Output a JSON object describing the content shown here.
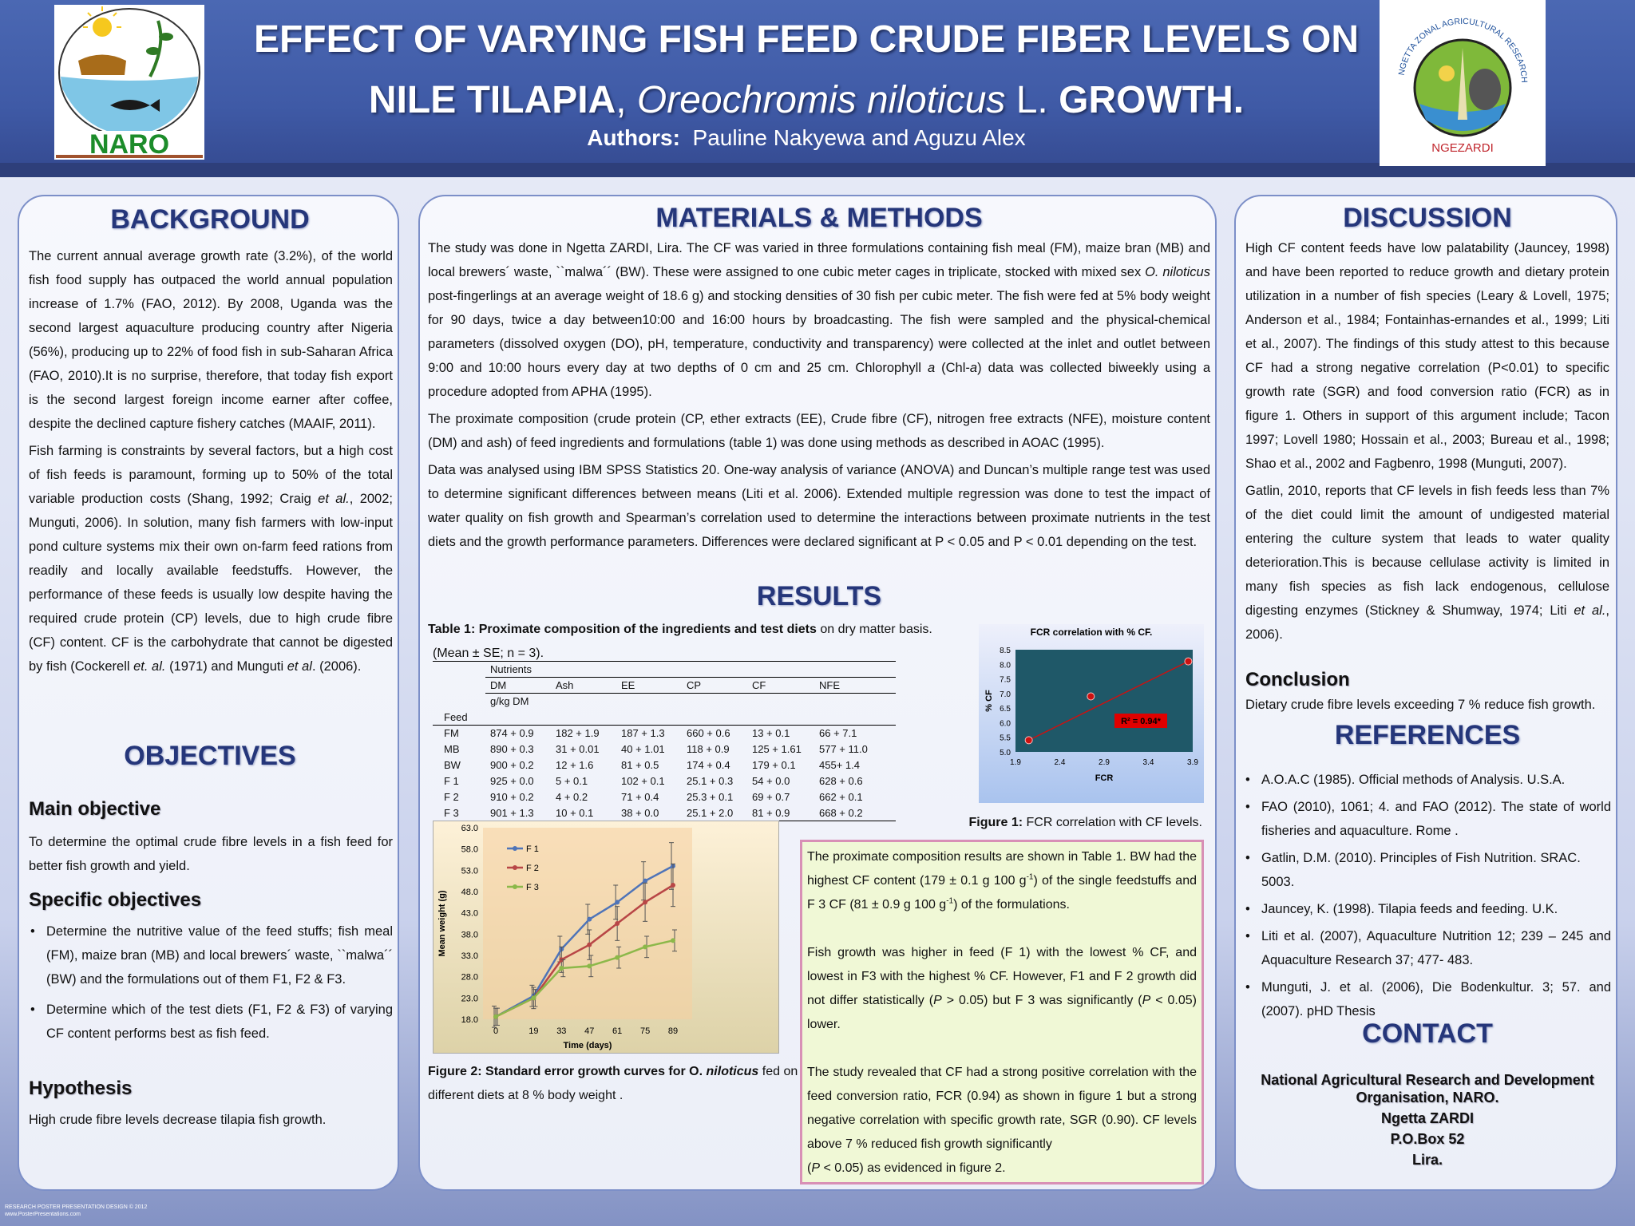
{
  "header": {
    "title_line1": "EFFECT OF VARYING FISH FEED CRUDE FIBER LEVELS ON",
    "title_line2_a": "NILE TILAPIA",
    "title_line2_b": "Oreochromis niloticus",
    "title_line2_c": "L.",
    "title_line2_d": "GROWTH.",
    "authors_label": "Authors:",
    "authors": "Pauline Nakyewa  and  Aguzu  Alex",
    "logo_left_text": "NARO",
    "logo_right_ring": "NGETTA ZONAL AGRICULTURAL RESEARCH AND DEVELOPMENT INSTITUTE",
    "logo_right_text": "NGEZARDI"
  },
  "background": {
    "heading": "BACKGROUND",
    "p1": "The current annual average growth rate (3.2%), of the world fish food supply has outpaced the world annual  population increase of 1.7% (FAO, 2012). By 2008, Uganda was the second largest aquaculture producing country after Nigeria (56%), producing up to 22% of food fish in sub-Saharan Africa (FAO, 2010).It is no surprise, therefore, that today fish export is the second largest foreign income earner after coffee, despite the declined capture fishery catches (MAAIF, 2011).",
    "p2_a": "Fish farming is constraints by several factors, but a high cost of fish feeds is paramount, forming up to 50% of the total variable production costs (Shang, 1992; Craig ",
    "p2_b": "et al.",
    "p2_c": ", 2002; Munguti, 2006). In solution, many fish farmers with low-input pond culture systems mix their own on-farm feed rations from readily and locally available feedstuffs. However, the performance of these feeds is usually low despite having the required crude protein (CP) levels, due to high crude fibre (CF) content.  CF is the carbohydrate that cannot be digested by fish (Cockerell ",
    "p2_d": "et. al.",
    "p2_e": " (1971) and Munguti ",
    "p2_f": "et al",
    "p2_g": ". (2006)."
  },
  "objectives": {
    "heading": "OBJECTIVES",
    "main_heading": "Main objective",
    "main_text": "To determine the optimal crude fibre levels in a fish feed for better fish growth and yield.",
    "specific_heading": "Specific objectives",
    "specific": [
      "Determine the nutritive value of the feed stuffs; fish meal (FM), maize bran (MB) and local brewers´ waste, ``malwa´´ (BW) and the formulations out of them F1, F2 & F3.",
      "Determine which of the test diets (F1, F2 & F3) of varying CF content performs best as fish feed."
    ],
    "hypothesis_heading": "Hypothesis",
    "hypothesis_text": "High crude fibre levels decrease tilapia fish growth."
  },
  "methods": {
    "heading": "MATERIALS & METHODS",
    "p1_a": "The study was done in Ngetta ZARDI, Lira. The CF was varied in three formulations containing  fish meal (FM), maize bran (MB) and local brewers´ waste, ``malwa´´ (BW).  These were assigned to one cubic meter cages in triplicate, stocked with mixed sex ",
    "p1_b": "O. niloticus",
    "p1_c": " post-fingerlings at an average weight of 18.6 g) and stocking densities of 30 fish per cubic meter. The fish were fed at 5% body weight for 90 days, twice a day between10:00 and 16:00 hours by broadcasting. The fish were sampled and the physical-chemical parameters (dissolved oxygen (DO), pH, temperature, conductivity and transparency) were collected at the inlet and outlet between 9:00 and 10:00 hours every day at two depths of 0 cm and 25 cm. Chlorophyll ",
    "p1_d": "a",
    "p1_e": " (Chl-",
    "p1_f": "a",
    "p1_g": ") data was collected biweekly using a procedure adopted from APHA (1995).",
    "p2": "The proximate composition  (crude protein (CP, ether extracts (EE), Crude fibre (CF), nitrogen free extracts (NFE), moisture content (DM) and ash) of feed ingredients and formulations (table 1) was done using methods as described in AOAC (1995).",
    "p3": "Data was analysed using IBM SPSS Statistics 20. One-way analysis of variance (ANOVA) and  Duncan’s multiple range test was used to determine significant differences between means (Liti et al. 2006).  Extended multiple regression was done to test the impact of water quality on fish growth and Spearman’s correlation used to determine the interactions between proximate nutrients in the test diets and the growth performance parameters.  Differences were declared significant at P < 0.05 and P < 0.01 depending on the test."
  },
  "results": {
    "heading": "RESULTS",
    "table_caption_a": "Table 1:",
    "table_caption_b": "Proximate composition of the ingredients and test diets",
    "table_caption_c": "on dry matter basis.",
    "table_caption_d": "(Mean ± SE; n = 3).",
    "table": {
      "group_label": "Nutrients",
      "unit_label": "g/kg DM",
      "row_header": "Feed",
      "columns": [
        "DM",
        "Ash",
        "EE",
        "CP",
        "CF",
        "NFE"
      ],
      "rows": [
        {
          "feed": "FM",
          "cells": [
            "874 + 0.9",
            "182 + 1.9",
            "187 + 1.3",
            "660 + 0.6",
            "13 + 0.1",
            "66 + 7.1"
          ]
        },
        {
          "feed": "MB",
          "cells": [
            "890 + 0.3",
            "31 + 0.01",
            "40 + 1.01",
            "118 + 0.9",
            "125 + 1.61",
            "577 + 11.0"
          ]
        },
        {
          "feed": "BW",
          "cells": [
            "900 + 0.2",
            "12 + 1.6",
            "81 + 0.5",
            "174 + 0.4",
            "179 + 0.1",
            "455+ 1.4"
          ]
        },
        {
          "feed": "F 1",
          "cells": [
            "925 + 0.0",
            "5 + 0.1",
            "102 + 0.1",
            "25.1 + 0.3",
            "54 + 0.0",
            "628 + 0.6"
          ]
        },
        {
          "feed": "F 2",
          "cells": [
            "910 + 0.2",
            "4 + 0.2",
            "71 + 0.4",
            "25.3 + 0.1",
            "69 + 0.7",
            "662 + 0.1"
          ]
        },
        {
          "feed": "F 3",
          "cells": [
            "901 + 1.3",
            "10 + 0.1",
            "38 + 0.0",
            "25.1 + 2.0",
            "81 + 0.9",
            "668 + 0.2"
          ]
        }
      ]
    },
    "fig1_caption_a": "Figure 1:",
    "fig1_caption_b": "FCR correlation with CF levels.",
    "fig2_caption_a": "Figure 2:",
    "fig2_caption_b": "Standard error growth curves for O.",
    "fig2_caption_c": "niloticus",
    "fig2_caption_d": "fed on different diets at 8 % body weight .",
    "box_p1_a": "The proximate composition results are shown in Table 1. BW had the highest CF content (179 ± 0.1 g 100 g",
    "box_p1_sup1": "-1",
    "box_p1_b": ") of the single feedstuffs  and  F 3 CF (81 ± 0.9 g 100 g",
    "box_p1_sup2": "-1",
    "box_p1_c": ") of the formulations.",
    "box_p2_a": "Fish growth was higher in feed (F 1) with the lowest % CF,  and lowest in F3 with the highest % CF. However, F1 and F 2 growth did not differ statistically (",
    "box_p2_b": "P",
    "box_p2_c": " > 0.05)  but  F 3 was significantly (",
    "box_p2_d": "P",
    "box_p2_e": " < 0.05) lower.",
    "box_p3_a": "The study revealed that CF had a strong positive correlation with the feed conversion ratio, FCR (0.94) as shown in figure 1 but a strong negative correlation with specific growth rate, SGR (0.90). CF levels above 7 % reduced fish growth significantly",
    "box_p3_b": "(",
    "box_p3_c": "P",
    "box_p3_d": " < 0.05) as evidenced in figure 2."
  },
  "discussion": {
    "heading": "DISCUSSION",
    "p1": "High CF content feeds have low palatability (Jauncey, 1998) and have been reported to reduce growth and dietary protein utilization in a number of fish species (Leary & Lovell, 1975; Anderson et al., 1984; Fontainhas-ernandes et al., 1999; Liti et al., 2007).  The findings of this study attest to this because CF had a strong negative correlation (P<0.01) to specific growth rate (SGR) and food conversion ratio (FCR) as in figure 1. Others in support of this argument include; Tacon 1997; Lovell 1980; Hossain et al., 2003; Bureau et al., 1998; Shao et al., 2002 and Fagbenro, 1998 (Munguti, 2007).",
    "p2_a": "Gatlin, 2010, reports that CF levels in fish feeds less than 7% of the diet could limit the amount of undigested material entering the culture system that leads to water quality deterioration.This is because cellulase activity is limited in many fish species as fish lack endogenous, cellulose digesting enzymes (Stickney & Shumway, 1974; Liti ",
    "p2_b": "et al.",
    "p2_c": ", 2006).",
    "conclusion_heading": "Conclusion",
    "conclusion_text": "Dietary crude fibre levels exceeding 7 % reduce fish growth."
  },
  "references": {
    "heading": "REFERENCES",
    "items": [
      "A.O.A.C (1985). Official methods of Analysis. U.S.A.",
      "FAO (2010), 1061; 4. and FAO (2012). The state of world fisheries and aquaculture. Rome .",
      "Gatlin, D.M. (2010). Principles of Fish Nutrition. SRAC. 5003.",
      "Jauncey, K. (1998). Tilapia feeds and feeding. U.K.",
      "Liti et al. (2007), Aquaculture Nutrition 12; 239 – 245 and Aquaculture Research 37; 477- 483.",
      "Munguti, J. et al. (2006), Die Bodenkultur. 3; 57. and (2007). pHD Thesis"
    ]
  },
  "contact": {
    "heading": "CONTACT",
    "line1": "National Agricultural Research and Development Organisation, NARO.",
    "line2": "Ngetta ZARDI",
    "line3": "P.O.Box 52",
    "line4": "Lira."
  },
  "footer": {
    "line1": "RESEARCH POSTER PRESENTATION DESIGN © 2012",
    "line2": "www.PosterPresentations.com"
  },
  "chart_data": [
    {
      "type": "scatter",
      "title": "FCR correlation with % CF.",
      "xlabel": "FCR",
      "ylabel": "% CF",
      "x_ticks": [
        "1.9",
        "2.4",
        "2.9",
        "3.4",
        "3.9"
      ],
      "y_ticks": [
        "5.0",
        "5.5",
        "6.0",
        "6.5",
        "7.0",
        "7.5",
        "8.0",
        "8.5"
      ],
      "xlim": [
        1.9,
        3.9
      ],
      "ylim": [
        5.0,
        8.5
      ],
      "points": [
        {
          "x": 2.05,
          "y": 5.4
        },
        {
          "x": 2.75,
          "y": 6.9
        },
        {
          "x": 3.85,
          "y": 8.1
        }
      ],
      "annotation": "R² = 0.94*",
      "colors": {
        "plot_bg": "#1f5868",
        "marker": "#cc1111",
        "annotation_bg": "#e00000"
      }
    },
    {
      "type": "line",
      "xlabel": "Time (days)",
      "ylabel": "Mean weight (g)",
      "x": [
        0,
        19,
        33,
        47,
        61,
        75,
        89
      ],
      "x_ticks": [
        "0",
        "19",
        "33",
        "47",
        "61",
        "75",
        "89"
      ],
      "y_ticks": [
        "18.0",
        "23.0",
        "28.0",
        "33.0",
        "38.0",
        "43.0",
        "48.0",
        "53.0",
        "58.0",
        "63.0"
      ],
      "ylim": [
        18,
        63
      ],
      "series": [
        {
          "name": "F 1",
          "color": "#4f74b8",
          "values": [
            18.6,
            23.5,
            34.5,
            41.5,
            45.5,
            50.5,
            54.0
          ],
          "errors": [
            2.5,
            2.5,
            3.0,
            3.5,
            4.0,
            4.5,
            5.5
          ]
        },
        {
          "name": "F 2",
          "color": "#b84646",
          "values": [
            18.6,
            23.0,
            32.0,
            35.5,
            40.5,
            45.5,
            49.5
          ],
          "errors": [
            2.0,
            2.5,
            3.0,
            3.5,
            4.0,
            4.5,
            5.0
          ]
        },
        {
          "name": "F 3",
          "color": "#8cb84a",
          "values": [
            18.6,
            23.0,
            30.0,
            30.5,
            32.5,
            35.0,
            36.5
          ],
          "errors": [
            2.0,
            2.0,
            2.0,
            2.5,
            2.5,
            2.5,
            2.5
          ]
        }
      ]
    }
  ]
}
